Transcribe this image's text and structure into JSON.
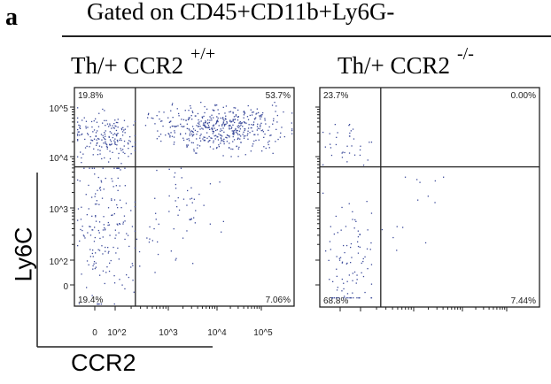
{
  "panel_letter": "a",
  "gate_title": "Gated on CD45+CD11b+Ly6G-",
  "chart_data": [
    {
      "type": "scatter",
      "title": "Th/+ CCR2",
      "title_superscript": "+/+",
      "xlabel": "CCR2",
      "ylabel": "Ly6C",
      "x_scale": "biexponential",
      "y_scale": "biexponential",
      "x_ticks": [
        "0",
        "10^2",
        "10^3",
        "10^4",
        "10^5"
      ],
      "y_ticks": [
        "0",
        "10^2",
        "10^3",
        "10^4",
        "10^5"
      ],
      "gates": {
        "x": 240,
        "y": 6300
      },
      "quadrants": {
        "upper_left": "19.8%",
        "upper_right": "53.7%",
        "lower_left": "19.4%",
        "lower_right": "7.06%"
      }
    },
    {
      "type": "scatter",
      "title": "Th/+ CCR2",
      "title_superscript": "-/-",
      "x_scale": "biexponential",
      "y_scale": "biexponential",
      "gates": {
        "x": 240,
        "y": 6300
      },
      "quadrants": {
        "upper_left": "23.7%",
        "upper_right": "0.00%",
        "lower_left": "68.8%",
        "lower_right": "7.44%"
      }
    }
  ],
  "colors": {
    "dots": "#3b4a9a",
    "axes": "#222222"
  }
}
